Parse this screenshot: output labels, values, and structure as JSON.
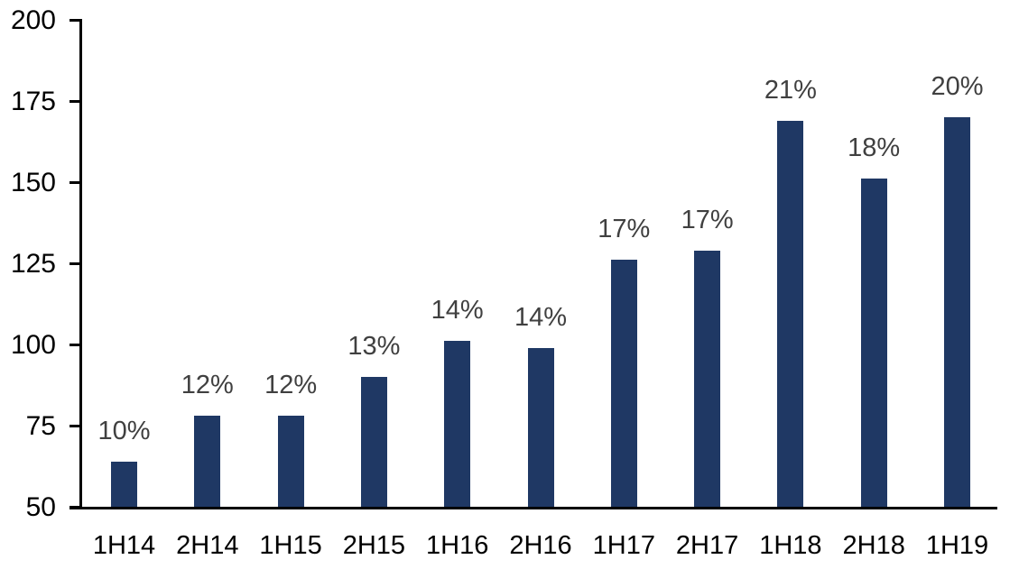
{
  "chart_data": {
    "type": "bar",
    "title": "",
    "xlabel": "",
    "ylabel": "",
    "categories": [
      "1H14",
      "2H14",
      "1H15",
      "2H15",
      "1H16",
      "2H16",
      "1H17",
      "2H17",
      "1H18",
      "2H18",
      "1H19"
    ],
    "values": [
      64,
      78,
      78,
      90,
      101,
      99,
      126,
      129,
      169,
      151,
      170
    ],
    "bar_labels": [
      "10%",
      "12%",
      "12%",
      "13%",
      "14%",
      "14%",
      "17%",
      "17%",
      "21%",
      "18%",
      "20%"
    ],
    "ylim": [
      50,
      200
    ],
    "y_ticks": [
      50,
      75,
      100,
      125,
      150,
      175,
      200
    ],
    "grid": false,
    "legend": false,
    "colors": {
      "bar_fill": "#1F3864",
      "bar_label_text": "#404040",
      "axis_line": "#000000",
      "axis_tick_text": "#000000",
      "background": "#ffffff"
    }
  }
}
